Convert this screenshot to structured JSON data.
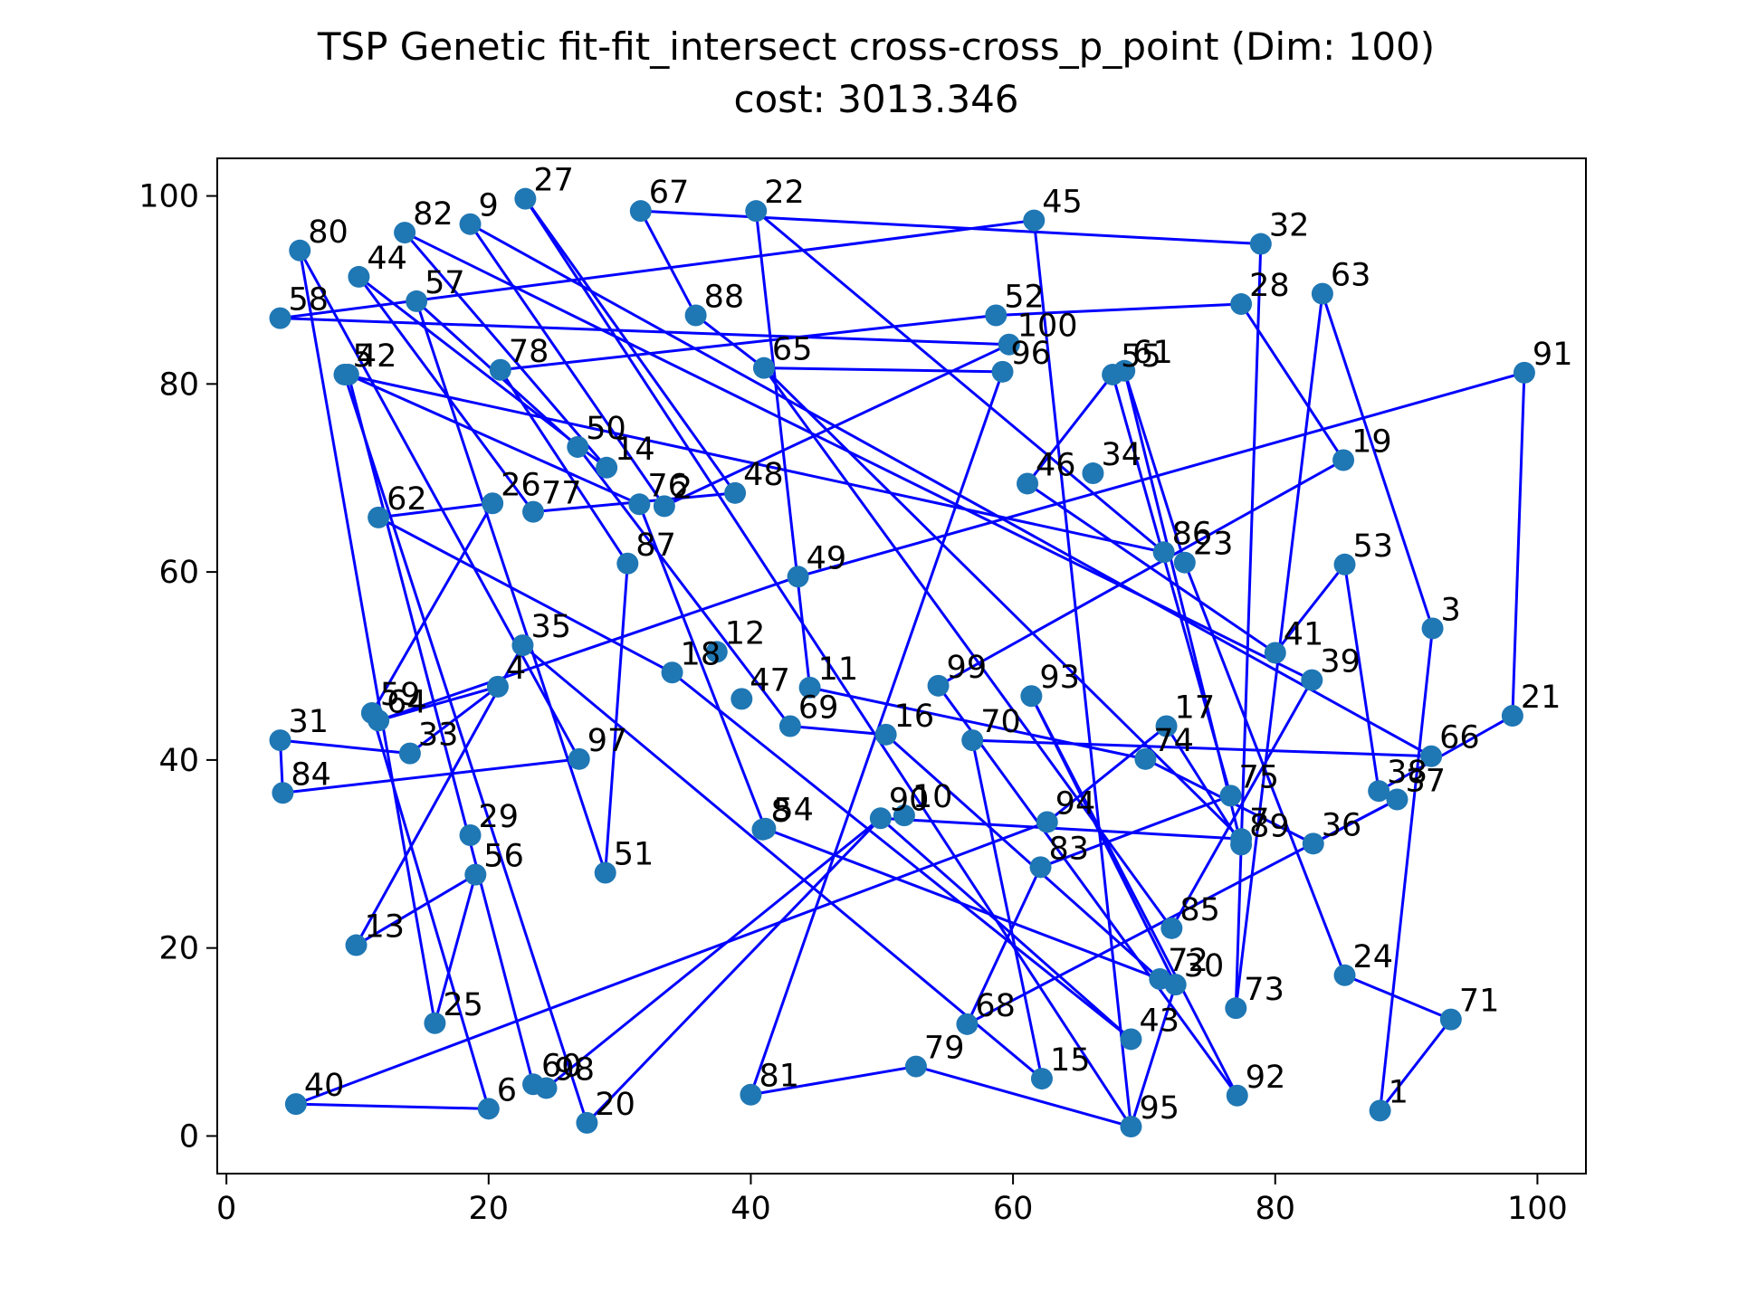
{
  "chart_data": {
    "type": "line",
    "title": "TSP Genetic fit-fit_intersect cross-cross_p_point (Dim: 100)",
    "subtitle": "cost: 3013.346",
    "xlabel": "",
    "ylabel": "",
    "xlim": [
      -0.7,
      103.7
    ],
    "ylim": [
      -4.0,
      104.0
    ],
    "x_ticks": [
      0,
      20,
      40,
      60,
      80,
      100
    ],
    "y_ticks": [
      0,
      20,
      40,
      60,
      80,
      100
    ],
    "grid": false,
    "line_color": "#0000ff",
    "marker_color": "#1f77b4",
    "nodes": [
      {
        "id": 1,
        "x": 88.0,
        "y": 2.7
      },
      {
        "id": 2,
        "x": 33.4,
        "y": 67.0
      },
      {
        "id": 3,
        "x": 92.0,
        "y": 54.0
      },
      {
        "id": 4,
        "x": 20.7,
        "y": 47.8
      },
      {
        "id": 5,
        "x": 9.0,
        "y": 81.0
      },
      {
        "id": 6,
        "x": 20.0,
        "y": 2.9
      },
      {
        "id": 7,
        "x": 77.4,
        "y": 31.6
      },
      {
        "id": 8,
        "x": 40.9,
        "y": 32.6
      },
      {
        "id": 9,
        "x": 18.6,
        "y": 97.0
      },
      {
        "id": 10,
        "x": 51.7,
        "y": 34.1
      },
      {
        "id": 11,
        "x": 44.5,
        "y": 47.7
      },
      {
        "id": 12,
        "x": 37.4,
        "y": 51.5
      },
      {
        "id": 13,
        "x": 9.9,
        "y": 20.3
      },
      {
        "id": 14,
        "x": 29.0,
        "y": 71.1
      },
      {
        "id": 15,
        "x": 62.2,
        "y": 6.1
      },
      {
        "id": 16,
        "x": 50.3,
        "y": 42.7
      },
      {
        "id": 17,
        "x": 71.7,
        "y": 43.6
      },
      {
        "id": 18,
        "x": 34.0,
        "y": 49.3
      },
      {
        "id": 19,
        "x": 85.2,
        "y": 71.9
      },
      {
        "id": 20,
        "x": 27.5,
        "y": 1.4
      },
      {
        "id": 21,
        "x": 98.1,
        "y": 44.7
      },
      {
        "id": 22,
        "x": 40.4,
        "y": 98.4
      },
      {
        "id": 23,
        "x": 73.1,
        "y": 61.0
      },
      {
        "id": 24,
        "x": 85.3,
        "y": 17.1
      },
      {
        "id": 25,
        "x": 15.9,
        "y": 12.0
      },
      {
        "id": 26,
        "x": 20.3,
        "y": 67.3
      },
      {
        "id": 27,
        "x": 22.8,
        "y": 99.7
      },
      {
        "id": 28,
        "x": 77.4,
        "y": 88.5
      },
      {
        "id": 29,
        "x": 18.6,
        "y": 32.0
      },
      {
        "id": 30,
        "x": 72.4,
        "y": 16.1
      },
      {
        "id": 31,
        "x": 4.1,
        "y": 42.1
      },
      {
        "id": 32,
        "x": 78.9,
        "y": 94.9
      },
      {
        "id": 33,
        "x": 14.0,
        "y": 40.7
      },
      {
        "id": 34,
        "x": 66.1,
        "y": 70.5
      },
      {
        "id": 35,
        "x": 22.6,
        "y": 52.2
      },
      {
        "id": 36,
        "x": 82.9,
        "y": 31.1
      },
      {
        "id": 37,
        "x": 89.3,
        "y": 35.8
      },
      {
        "id": 38,
        "x": 87.9,
        "y": 36.7
      },
      {
        "id": 39,
        "x": 82.8,
        "y": 48.5
      },
      {
        "id": 40,
        "x": 5.3,
        "y": 3.4
      },
      {
        "id": 41,
        "x": 80.0,
        "y": 51.4
      },
      {
        "id": 42,
        "x": 9.3,
        "y": 81.0
      },
      {
        "id": 43,
        "x": 69.0,
        "y": 10.3
      },
      {
        "id": 44,
        "x": 10.1,
        "y": 91.4
      },
      {
        "id": 45,
        "x": 61.6,
        "y": 97.4
      },
      {
        "id": 46,
        "x": 61.1,
        "y": 69.4
      },
      {
        "id": 47,
        "x": 39.3,
        "y": 46.5
      },
      {
        "id": 48,
        "x": 38.8,
        "y": 68.4
      },
      {
        "id": 49,
        "x": 43.6,
        "y": 59.5
      },
      {
        "id": 50,
        "x": 26.8,
        "y": 73.3
      },
      {
        "id": 51,
        "x": 28.9,
        "y": 28.0
      },
      {
        "id": 52,
        "x": 58.7,
        "y": 87.3
      },
      {
        "id": 53,
        "x": 85.3,
        "y": 60.8
      },
      {
        "id": 54,
        "x": 41.1,
        "y": 32.7
      },
      {
        "id": 55,
        "x": 67.6,
        "y": 81.0
      },
      {
        "id": 56,
        "x": 19.0,
        "y": 27.8
      },
      {
        "id": 57,
        "x": 14.5,
        "y": 88.8
      },
      {
        "id": 58,
        "x": 4.1,
        "y": 87.0
      },
      {
        "id": 59,
        "x": 11.1,
        "y": 45.0
      },
      {
        "id": 60,
        "x": 23.4,
        "y": 5.5
      },
      {
        "id": 61,
        "x": 68.5,
        "y": 81.4
      },
      {
        "id": 62,
        "x": 11.6,
        "y": 65.8
      },
      {
        "id": 63,
        "x": 83.6,
        "y": 89.6
      },
      {
        "id": 64,
        "x": 11.6,
        "y": 44.2
      },
      {
        "id": 65,
        "x": 41.0,
        "y": 81.7
      },
      {
        "id": 66,
        "x": 91.9,
        "y": 40.4
      },
      {
        "id": 67,
        "x": 31.6,
        "y": 98.4
      },
      {
        "id": 68,
        "x": 56.5,
        "y": 11.9
      },
      {
        "id": 69,
        "x": 43.0,
        "y": 43.6
      },
      {
        "id": 70,
        "x": 56.9,
        "y": 42.1
      },
      {
        "id": 71,
        "x": 93.4,
        "y": 12.4
      },
      {
        "id": 72,
        "x": 71.2,
        "y": 16.7
      },
      {
        "id": 73,
        "x": 77.0,
        "y": 13.6
      },
      {
        "id": 74,
        "x": 70.1,
        "y": 40.1
      },
      {
        "id": 75,
        "x": 76.6,
        "y": 36.2
      },
      {
        "id": 76,
        "x": 31.5,
        "y": 67.2
      },
      {
        "id": 77,
        "x": 23.4,
        "y": 66.4
      },
      {
        "id": 78,
        "x": 20.9,
        "y": 81.5
      },
      {
        "id": 79,
        "x": 52.6,
        "y": 7.4
      },
      {
        "id": 80,
        "x": 5.6,
        "y": 94.2
      },
      {
        "id": 81,
        "x": 40.0,
        "y": 4.4
      },
      {
        "id": 82,
        "x": 13.6,
        "y": 96.1
      },
      {
        "id": 83,
        "x": 62.1,
        "y": 28.6
      },
      {
        "id": 84,
        "x": 4.3,
        "y": 36.5
      },
      {
        "id": 85,
        "x": 72.1,
        "y": 22.1
      },
      {
        "id": 86,
        "x": 71.5,
        "y": 62.1
      },
      {
        "id": 87,
        "x": 30.6,
        "y": 60.9
      },
      {
        "id": 88,
        "x": 35.8,
        "y": 87.3
      },
      {
        "id": 89,
        "x": 77.4,
        "y": 31.0
      },
      {
        "id": 90,
        "x": 49.9,
        "y": 33.8
      },
      {
        "id": 91,
        "x": 99.0,
        "y": 81.2
      },
      {
        "id": 92,
        "x": 77.1,
        "y": 4.3
      },
      {
        "id": 93,
        "x": 61.4,
        "y": 46.8
      },
      {
        "id": 94,
        "x": 62.6,
        "y": 33.4
      },
      {
        "id": 95,
        "x": 69.0,
        "y": 1.0
      },
      {
        "id": 96,
        "x": 59.2,
        "y": 81.3
      },
      {
        "id": 97,
        "x": 26.9,
        "y": 40.1
      },
      {
        "id": 98,
        "x": 24.4,
        "y": 5.1
      },
      {
        "id": 99,
        "x": 54.3,
        "y": 47.9
      },
      {
        "id": 100,
        "x": 59.7,
        "y": 84.2
      }
    ],
    "tour": [
      67,
      32,
      73,
      63,
      3,
      1,
      71,
      24,
      23,
      61,
      89,
      17,
      94,
      40,
      6,
      59,
      26,
      62,
      18,
      43,
      90,
      20,
      5,
      86,
      22,
      11,
      74,
      36,
      37,
      68,
      83,
      75,
      55,
      46,
      41,
      53,
      38,
      21,
      91,
      49,
      64,
      4,
      33,
      31,
      84,
      97,
      80,
      25,
      56,
      13,
      35,
      15,
      70,
      66,
      9,
      2,
      100,
      58,
      45,
      95,
      30,
      93,
      92,
      99,
      19,
      28,
      52,
      78,
      87,
      51,
      57,
      50,
      69,
      16,
      72,
      54,
      76,
      42,
      60,
      98,
      90,
      7,
      65,
      96,
      81,
      79,
      95,
      27,
      48,
      77,
      44,
      14,
      82,
      39,
      85,
      65,
      88,
      67
    ]
  }
}
